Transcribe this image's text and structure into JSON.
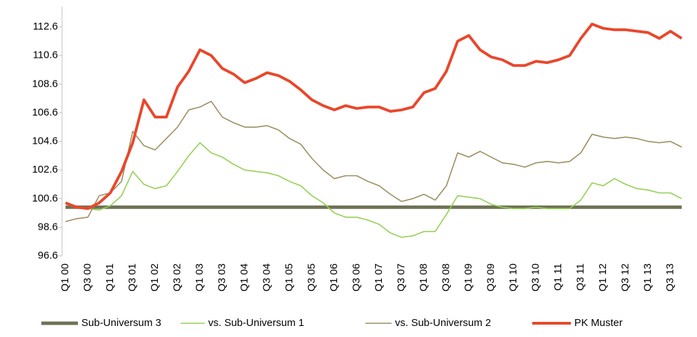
{
  "chart_data": {
    "type": "line",
    "categories": [
      "Q1 00",
      null,
      "Q3 00",
      null,
      "Q1 01",
      null,
      "Q3 01",
      null,
      "Q1 02",
      null,
      "Q3 02",
      null,
      "Q1 03",
      null,
      "Q3 03",
      null,
      "Q1 04",
      null,
      "Q3 04",
      null,
      "Q1 05",
      null,
      "Q3 05",
      null,
      "Q1 06",
      null,
      "Q3 06",
      null,
      "Q1 07",
      null,
      "Q3 07",
      null,
      "Q1 08",
      null,
      "Q3 08",
      null,
      "Q1 09",
      null,
      "Q3 09",
      null,
      "Q1 10",
      null,
      "Q3 10",
      null,
      "Q1 11",
      null,
      "Q3 11",
      null,
      "Q1 12",
      null,
      "Q3 12",
      null,
      "Q1 13",
      null,
      "Q3 13",
      null
    ],
    "series": [
      {
        "name": "Sub-Universum 3",
        "color": "#6e7254",
        "width": 5,
        "values": [
          100.0,
          100.0,
          100.0,
          100.0,
          100.0,
          100.0,
          100.0,
          100.0,
          100.0,
          100.0,
          100.0,
          100.0,
          100.0,
          100.0,
          100.0,
          100.0,
          100.0,
          100.0,
          100.0,
          100.0,
          100.0,
          100.0,
          100.0,
          100.0,
          100.0,
          100.0,
          100.0,
          100.0,
          100.0,
          100.0,
          100.0,
          100.0,
          100.0,
          100.0,
          100.0,
          100.0,
          100.0,
          100.0,
          100.0,
          100.0,
          100.0,
          100.0,
          100.0,
          100.0,
          100.0,
          100.0,
          100.0,
          100.0,
          100.0,
          100.0,
          100.0,
          100.0,
          100.0,
          100.0,
          100.0,
          100.0
        ]
      },
      {
        "name": "vs. Sub-Universum 1",
        "color": "#92d050",
        "width": 1.6,
        "values": [
          100.3,
          100.0,
          99.9,
          99.8,
          100.1,
          100.8,
          102.5,
          101.6,
          101.3,
          101.5,
          102.5,
          103.6,
          104.5,
          103.8,
          103.5,
          103.0,
          102.6,
          102.5,
          102.4,
          102.2,
          101.8,
          101.5,
          100.8,
          100.3,
          99.6,
          99.3,
          99.3,
          99.1,
          98.8,
          98.2,
          97.9,
          98.0,
          98.3,
          98.3,
          99.5,
          100.8,
          100.7,
          100.6,
          100.2,
          100.0,
          99.9,
          99.9,
          100.0,
          99.9,
          99.9,
          99.9,
          100.5,
          101.7,
          101.5,
          102.0,
          101.6,
          101.3,
          101.2,
          101.0,
          101.0,
          100.6
        ]
      },
      {
        "name": "vs. Sub-Universum 2",
        "color": "#9b8e5e",
        "width": 1.6,
        "values": [
          99.0,
          99.2,
          99.3,
          100.8,
          101.0,
          101.8,
          105.3,
          104.3,
          104.0,
          104.8,
          105.6,
          106.8,
          107.0,
          107.4,
          106.3,
          105.9,
          105.6,
          105.6,
          105.7,
          105.4,
          104.8,
          104.4,
          103.4,
          102.6,
          102.0,
          102.2,
          102.2,
          101.8,
          101.5,
          100.9,
          100.4,
          100.6,
          100.9,
          100.5,
          101.5,
          103.8,
          103.5,
          103.9,
          103.5,
          103.1,
          103.0,
          102.8,
          103.1,
          103.2,
          103.1,
          103.2,
          103.8,
          105.1,
          104.9,
          104.8,
          104.9,
          104.8,
          104.6,
          104.5,
          104.6,
          104.2
        ]
      },
      {
        "name": "PK Muster",
        "color": "#e9472b",
        "width": 4,
        "values": [
          100.3,
          100.0,
          99.9,
          100.3,
          101.0,
          102.5,
          104.5,
          107.5,
          106.3,
          106.3,
          108.4,
          109.5,
          111.0,
          110.6,
          109.7,
          109.3,
          108.7,
          109.0,
          109.4,
          109.2,
          108.8,
          108.2,
          107.5,
          107.1,
          106.8,
          107.1,
          106.9,
          107.0,
          107.0,
          106.7,
          106.8,
          107.0,
          108.0,
          108.3,
          109.5,
          111.6,
          112.0,
          111.0,
          110.5,
          110.3,
          109.9,
          109.9,
          110.2,
          110.1,
          110.3,
          110.6,
          111.8,
          112.8,
          112.5,
          112.4,
          112.4,
          112.3,
          112.2,
          111.8,
          112.3,
          111.8
        ]
      }
    ],
    "ylim": [
      96.6,
      114.0
    ],
    "yticks": [
      96.6,
      98.6,
      100.6,
      102.6,
      104.6,
      106.6,
      108.6,
      110.6,
      112.6
    ]
  }
}
